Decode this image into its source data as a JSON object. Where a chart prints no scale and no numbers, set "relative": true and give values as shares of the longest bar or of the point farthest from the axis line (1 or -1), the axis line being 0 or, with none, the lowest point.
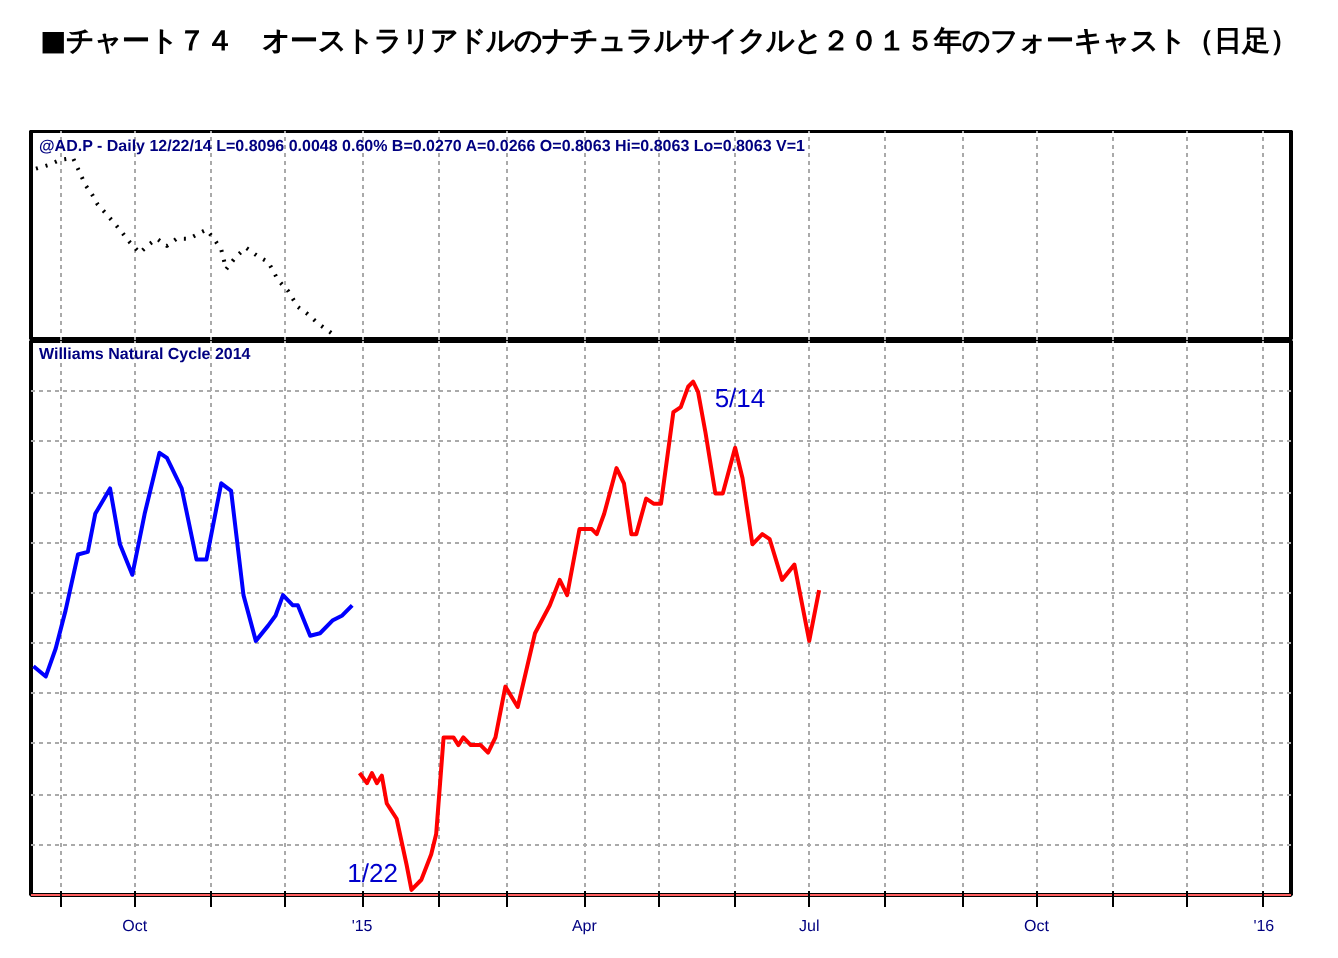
{
  "chart_data": [
    {
      "type": "line",
      "title": "■チャート７４　オーストラリアドルのナチュラルサイクルと２０１５年のフォーキャスト（日足）",
      "subtitle": "@AD.P - Daily 12/22/14 L=0.8096 0.0048 0.60% B=0.0270 A=0.0266 O=0.8063 Hi=0.8063 Lo=0.8063 V=1",
      "relative": true,
      "line_style": "dotted",
      "grid": "x",
      "tick_labels": false,
      "xlim": [
        "2014-08-20",
        "2016-01-12"
      ],
      "xticks": [
        {
          "value": "2014-09-01",
          "label": null
        },
        {
          "value": "2014-10-01",
          "label": null
        },
        {
          "value": "2014-11-01",
          "label": null
        },
        {
          "value": "2014-12-01",
          "label": null
        },
        {
          "value": "2015-01-01",
          "label": null
        },
        {
          "value": "2015-02-01",
          "label": null
        },
        {
          "value": "2015-03-01",
          "label": null
        },
        {
          "value": "2015-04-01",
          "label": null
        },
        {
          "value": "2015-05-01",
          "label": null
        },
        {
          "value": "2015-06-01",
          "label": null
        },
        {
          "value": "2015-07-01",
          "label": null
        },
        {
          "value": "2015-08-01",
          "label": null
        },
        {
          "value": "2015-09-01",
          "label": null
        },
        {
          "value": "2015-10-01",
          "label": null
        },
        {
          "value": "2015-11-01",
          "label": null
        },
        {
          "value": "2015-12-01",
          "label": null
        },
        {
          "value": "2016-01-01",
          "label": null
        }
      ],
      "series": [
        {
          "color": "#000000",
          "x": [
            "2014-08-22",
            "2014-08-27",
            "2014-09-01",
            "2014-09-06",
            "2014-09-08",
            "2014-09-11",
            "2014-09-14",
            "2014-09-16",
            "2014-09-20",
            "2014-09-25",
            "2014-09-29",
            "2014-10-03",
            "2014-10-06",
            "2014-10-10",
            "2014-10-14",
            "2014-10-18",
            "2014-10-23",
            "2014-10-27",
            "2014-10-30",
            "2014-11-02",
            "2014-11-05",
            "2014-11-07",
            "2014-11-11",
            "2014-11-15",
            "2014-11-20",
            "2014-11-24",
            "2014-11-28",
            "2014-12-02",
            "2014-12-06",
            "2014-12-10",
            "2014-12-14",
            "2014-12-18",
            "2014-12-22"
          ],
          "values": [
            0.94,
            0.96,
            0.99,
            1.0,
            0.94,
            0.85,
            0.79,
            0.74,
            0.68,
            0.6,
            0.53,
            0.47,
            0.51,
            0.55,
            0.51,
            0.55,
            0.55,
            0.58,
            0.6,
            0.55,
            0.49,
            0.38,
            0.45,
            0.5,
            0.45,
            0.42,
            0.32,
            0.26,
            0.17,
            0.13,
            0.08,
            0.04,
            0.0
          ]
        }
      ]
    },
    {
      "type": "line",
      "title": "Williams Natural Cycle 2014",
      "relative": true,
      "grid": true,
      "xlim": [
        "2014-08-20",
        "2016-01-12"
      ],
      "xticks": [
        {
          "value": "2014-09-01",
          "label": null
        },
        {
          "value": "2014-10-01",
          "label": "Oct"
        },
        {
          "value": "2014-11-01",
          "label": null
        },
        {
          "value": "2014-12-01",
          "label": null
        },
        {
          "value": "2015-01-01",
          "label": "'15"
        },
        {
          "value": "2015-02-01",
          "label": null
        },
        {
          "value": "2015-03-01",
          "label": null
        },
        {
          "value": "2015-04-01",
          "label": "Apr"
        },
        {
          "value": "2015-05-01",
          "label": null
        },
        {
          "value": "2015-06-01",
          "label": null
        },
        {
          "value": "2015-07-01",
          "label": "Jul"
        },
        {
          "value": "2015-08-01",
          "label": null
        },
        {
          "value": "2015-09-01",
          "label": null
        },
        {
          "value": "2015-10-01",
          "label": "Oct"
        },
        {
          "value": "2015-11-01",
          "label": null
        },
        {
          "value": "2015-12-01",
          "label": null
        },
        {
          "value": "2016-01-01",
          "label": "'16"
        }
      ],
      "annotations": [
        {
          "text": "1/22",
          "x": "2015-01-22",
          "y": 0.0
        },
        {
          "text": "5/14",
          "x": "2015-05-14",
          "y": 1.0
        }
      ],
      "series": [
        {
          "color": "#0000ff",
          "x": [
            "2014-08-21",
            "2014-08-26",
            "2014-08-30",
            "2014-09-03",
            "2014-09-08",
            "2014-09-12",
            "2014-09-15",
            "2014-09-21",
            "2014-09-25",
            "2014-09-30",
            "2014-10-05",
            "2014-10-11",
            "2014-10-14",
            "2014-10-20",
            "2014-10-26",
            "2014-10-30",
            "2014-11-05",
            "2014-11-09",
            "2014-11-14",
            "2014-11-19",
            "2014-11-24",
            "2014-11-27",
            "2014-11-30",
            "2014-12-04",
            "2014-12-06",
            "2014-12-11",
            "2014-12-15",
            "2014-12-20",
            "2014-12-24",
            "2014-12-28"
          ],
          "values": [
            0.44,
            0.42,
            0.475,
            0.55,
            0.66,
            0.665,
            0.74,
            0.79,
            0.68,
            0.62,
            0.74,
            0.86,
            0.85,
            0.79,
            0.65,
            0.65,
            0.8,
            0.785,
            0.58,
            0.49,
            0.52,
            0.54,
            0.58,
            0.56,
            0.56,
            0.5,
            0.505,
            0.53,
            0.54,
            0.56
          ]
        },
        {
          "color": "#ff0000",
          "x": [
            "2014-12-31",
            "2015-01-03",
            "2015-01-05",
            "2015-01-07",
            "2015-01-09",
            "2015-01-11",
            "2015-01-15",
            "2015-01-19",
            "2015-01-21",
            "2015-01-25",
            "2015-01-29",
            "2015-01-31",
            "2015-02-03",
            "2015-02-07",
            "2015-02-09",
            "2015-02-11",
            "2015-02-14",
            "2015-02-18",
            "2015-02-21",
            "2015-02-24",
            "2015-02-28",
            "2015-03-05",
            "2015-03-12",
            "2015-03-18",
            "2015-03-22",
            "2015-03-25",
            "2015-03-30",
            "2015-04-04",
            "2015-04-06",
            "2015-04-09",
            "2015-04-14",
            "2015-04-17",
            "2015-04-20",
            "2015-04-22",
            "2015-04-26",
            "2015-04-29",
            "2015-05-02",
            "2015-05-07",
            "2015-05-10",
            "2015-05-13",
            "2015-05-15",
            "2015-05-17",
            "2015-05-20",
            "2015-05-24",
            "2015-05-27",
            "2015-06-01",
            "2015-06-04",
            "2015-06-08",
            "2015-06-12",
            "2015-06-15",
            "2015-06-20",
            "2015-06-25",
            "2015-06-27",
            "2015-07-01",
            "2015-07-05"
          ],
          "values": [
            0.23,
            0.21,
            0.23,
            0.21,
            0.225,
            0.17,
            0.14,
            0.05,
            0.0,
            0.02,
            0.07,
            0.11,
            0.3,
            0.3,
            0.285,
            0.3,
            0.285,
            0.285,
            0.27,
            0.3,
            0.4,
            0.36,
            0.505,
            0.56,
            0.61,
            0.58,
            0.71,
            0.71,
            0.7,
            0.74,
            0.83,
            0.8,
            0.7,
            0.7,
            0.77,
            0.76,
            0.76,
            0.94,
            0.95,
            0.99,
            1.0,
            0.98,
            0.9,
            0.78,
            0.78,
            0.87,
            0.81,
            0.68,
            0.7,
            0.69,
            0.61,
            0.64,
            0.59,
            0.49,
            0.59
          ]
        }
      ]
    }
  ]
}
